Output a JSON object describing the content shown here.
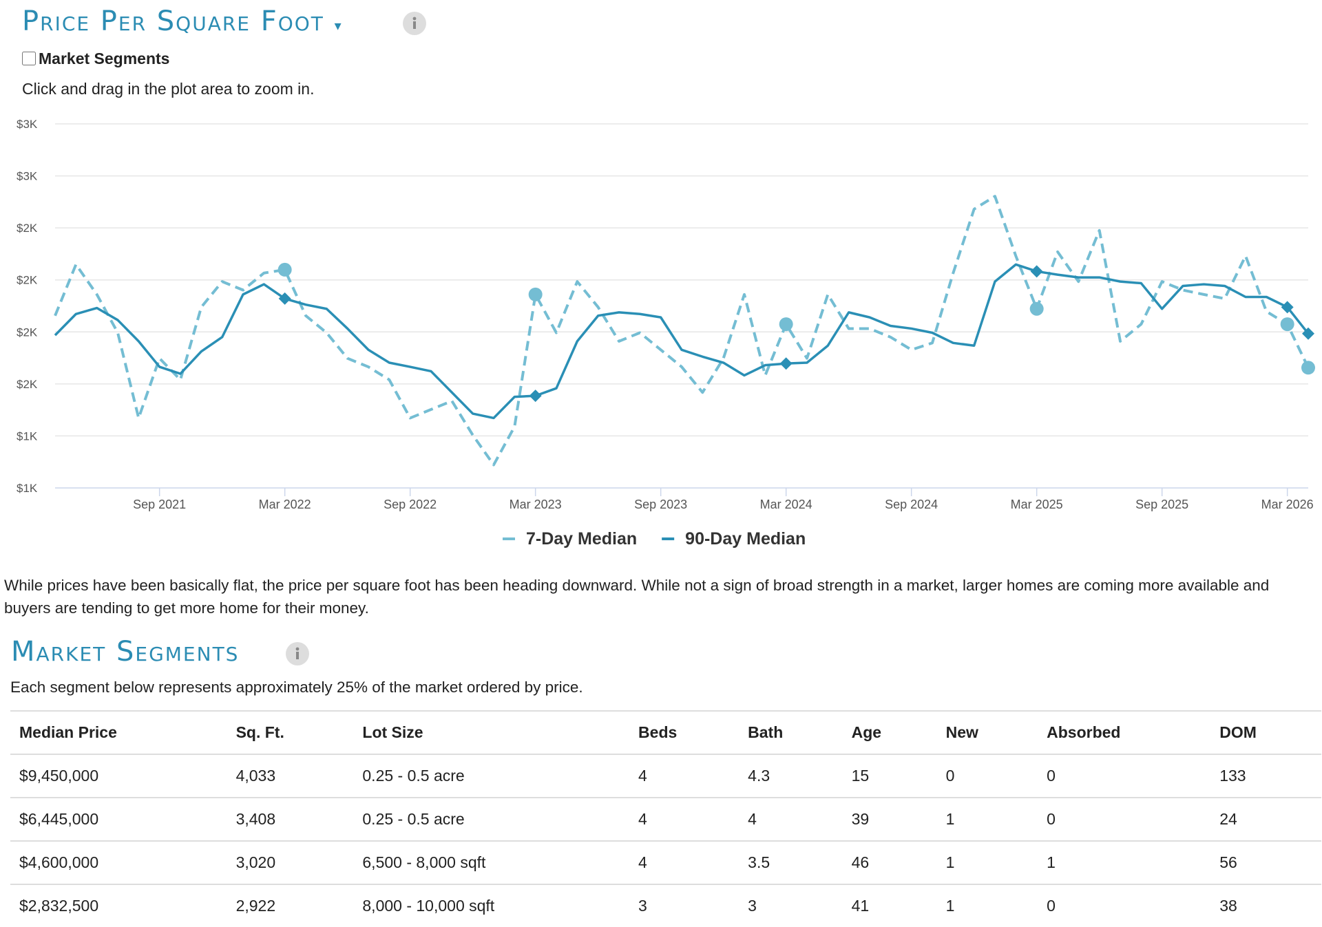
{
  "header": {
    "title": "Price Per Square Foot",
    "checkbox_label": "Market Segments",
    "hint": "Click and drag in the plot area to zoom in."
  },
  "chart_data": {
    "type": "line",
    "x": [
      "2021-04",
      "2021-05",
      "2021-06",
      "2021-07",
      "2021-08",
      "2021-09",
      "2021-10",
      "2021-11",
      "2021-12",
      "2022-01",
      "2022-02",
      "2022-03",
      "2022-04",
      "2022-05",
      "2022-06",
      "2022-07",
      "2022-08",
      "2022-09",
      "2022-10",
      "2022-11",
      "2022-12",
      "2023-01",
      "2023-02",
      "2023-03",
      "2023-04",
      "2023-05",
      "2023-06",
      "2023-07",
      "2023-08",
      "2023-09",
      "2023-10",
      "2023-11",
      "2023-12",
      "2024-01",
      "2024-02",
      "2024-03",
      "2024-04",
      "2024-05",
      "2024-06",
      "2024-07",
      "2024-08",
      "2024-09",
      "2024-10",
      "2024-11",
      "2024-12",
      "2025-01",
      "2025-02",
      "2025-03",
      "2025-04",
      "2025-05",
      "2025-06",
      "2025-07",
      "2025-08",
      "2025-09",
      "2025-10",
      "2025-11",
      "2025-12",
      "2026-01",
      "2026-02",
      "2026-03",
      "2026-04"
    ],
    "series": [
      {
        "name": "7-Day Median",
        "color": "#74bdd3",
        "dashed": true,
        "values": [
          1828,
          2074,
          1930,
          1746,
          1336,
          1623,
          1520,
          1869,
          1992,
          1951,
          2033,
          2049,
          1828,
          1746,
          1623,
          1582,
          1520,
          1336,
          1377,
          1418,
          1254,
          1111,
          1295,
          1930,
          1746,
          1992,
          1869,
          1705,
          1746,
          1664,
          1582,
          1459,
          1623,
          1930,
          1541,
          1787,
          1623,
          1930,
          1766,
          1766,
          1725,
          1664,
          1697,
          2033,
          2340,
          2402,
          2115,
          1861,
          2135,
          1992,
          2238,
          1705,
          1787,
          1992,
          1951,
          1930,
          1910,
          2115,
          1848,
          1787,
          1578
        ]
      },
      {
        "name": "90-Day Median",
        "color": "#2a8fb5",
        "dashed": false,
        "values": [
          1734,
          1836,
          1865,
          1807,
          1705,
          1582,
          1549,
          1656,
          1725,
          1930,
          1979,
          1910,
          1881,
          1861,
          1766,
          1664,
          1602,
          1582,
          1561,
          1459,
          1357,
          1336,
          1438,
          1443,
          1479,
          1705,
          1828,
          1844,
          1836,
          1820,
          1664,
          1631,
          1602,
          1541,
          1590,
          1598,
          1602,
          1684,
          1844,
          1820,
          1779,
          1766,
          1746,
          1697,
          1684,
          1992,
          2074,
          2041,
          2025,
          2012,
          2012,
          1992,
          1984,
          1861,
          1971,
          1979,
          1971,
          1918,
          1918,
          1869,
          1742
        ]
      }
    ],
    "xlim": [
      "2021-04",
      "2026-04"
    ],
    "xticks": [
      {
        "value": "2021-09",
        "label": "Sep 2021"
      },
      {
        "value": "2022-03",
        "label": "Mar 2022"
      },
      {
        "value": "2022-09",
        "label": "Sep 2022"
      },
      {
        "value": "2023-03",
        "label": "Mar 2023"
      },
      {
        "value": "2023-09",
        "label": "Sep 2023"
      },
      {
        "value": "2024-03",
        "label": "Mar 2024"
      },
      {
        "value": "2024-09",
        "label": "Sep 2024"
      },
      {
        "value": "2025-03",
        "label": "Mar 2025"
      },
      {
        "value": "2025-09",
        "label": "Sep 2025"
      },
      {
        "value": "2026-03",
        "label": "Mar 2026"
      }
    ],
    "ylim": [
      1000,
      2750
    ],
    "yticks": [
      {
        "value": 1000,
        "label": "$1K"
      },
      {
        "value": 1250,
        "label": "$1K"
      },
      {
        "value": 1500,
        "label": "$2K"
      },
      {
        "value": 1750,
        "label": "$2K"
      },
      {
        "value": 2000,
        "label": "$2K"
      },
      {
        "value": 2250,
        "label": "$2K"
      },
      {
        "value": 2500,
        "label": "$3K"
      },
      {
        "value": 2750,
        "label": "$3K"
      }
    ],
    "grid": true,
    "legend": "bottom"
  },
  "commentary": "While prices have been basically flat, the price per square foot has been heading downward. While not a sign of broad strength in a market, larger homes are coming more available and buyers are tending to get more home for their money.",
  "segments": {
    "title": "Market Segments",
    "subtitle": "Each segment below represents approximately 25% of the market ordered by price."
  },
  "table": {
    "header": [
      "Median Price",
      "Sq. Ft.",
      "Lot Size",
      "Beds",
      "Bath",
      "Age",
      "New",
      "Absorbed",
      "DOM"
    ],
    "rows": [
      [
        "$9,450,000",
        "4,033",
        "0.25 - 0.5 acre",
        "4",
        "4.3",
        "15",
        "0",
        "0",
        "133"
      ],
      [
        "$6,445,000",
        "3,408",
        "0.25 - 0.5 acre",
        "4",
        "4",
        "39",
        "1",
        "0",
        "24"
      ],
      [
        "$4,600,000",
        "3,020",
        "6,500 - 8,000 sqft",
        "4",
        "3.5",
        "46",
        "1",
        "1",
        "56"
      ],
      [
        "$2,832,500",
        "2,922",
        "8,000 - 10,000 sqft",
        "3",
        "3",
        "41",
        "1",
        "0",
        "38"
      ]
    ]
  }
}
